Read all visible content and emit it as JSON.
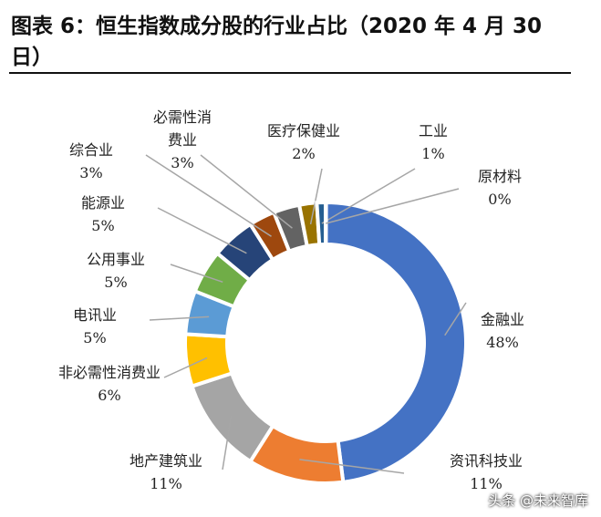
{
  "title": "图表 6：恒生指数成分股的行业占比（2020 年 4 月 30 日）",
  "watermark": "头条 @未来智库",
  "chart_data": {
    "type": "pie",
    "donut": true,
    "title": "恒生指数成分股的行业占比（2020 年 4 月 30 日）",
    "categories": [
      "金融业",
      "资讯科技业",
      "地产建筑业",
      "非必需性消费业",
      "电讯业",
      "公用事业",
      "能源业",
      "综合业",
      "必需性消费业",
      "医疗保健业",
      "工业",
      "原材料"
    ],
    "values": [
      48,
      11,
      11,
      6,
      5,
      5,
      5,
      3,
      3,
      2,
      1,
      0
    ],
    "value_labels": [
      "48%",
      "11%",
      "11%",
      "6%",
      "5%",
      "5%",
      "5%",
      "3%",
      "3%",
      "2%",
      "1%",
      "0%"
    ],
    "colors": [
      "#4472C4",
      "#ED7D31",
      "#A5A5A5",
      "#FFC000",
      "#5B9BD5",
      "#70AD47",
      "#264478",
      "#9E480E",
      "#636363",
      "#997300",
      "#255E91",
      "#43682B"
    ]
  }
}
